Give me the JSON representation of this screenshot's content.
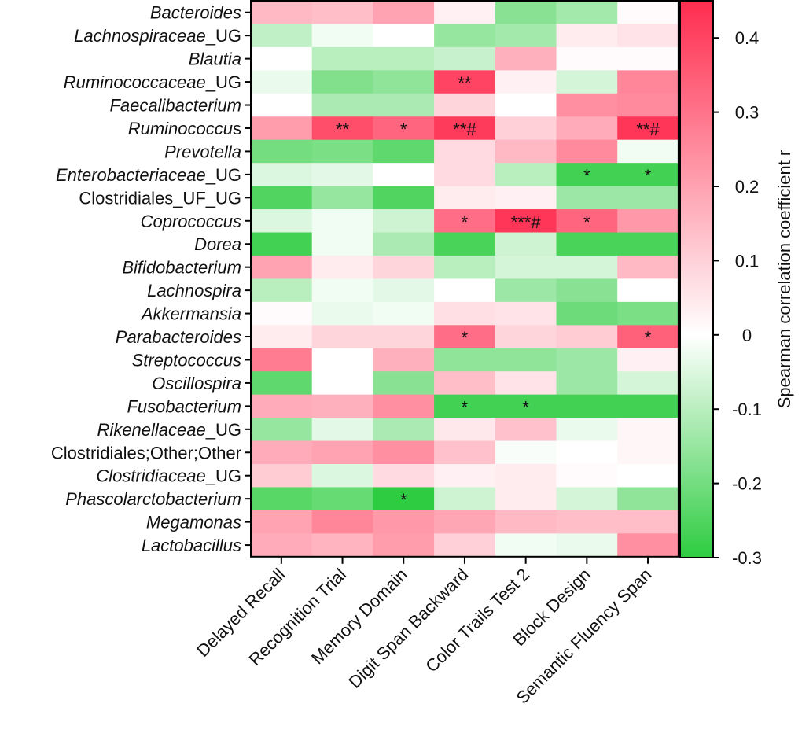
{
  "chart_data": {
    "type": "heatmap",
    "title": "",
    "rows": [
      {
        "name": "Bacteroides",
        "italic": true
      },
      {
        "name": "Lachnospiraceae_UG",
        "italic": true,
        "prefix": "Lachnospiraceae",
        "suffix": "_UG"
      },
      {
        "name": "Blautia",
        "italic": true
      },
      {
        "name": "Ruminococcaceae_UG",
        "italic": true,
        "prefix": "Ruminococcaceae",
        "suffix": "_UG"
      },
      {
        "name": "Faecalibacterium",
        "italic": true
      },
      {
        "name": "Ruminococcus",
        "italic": true,
        "prefix": "Ruminococcu",
        "suffix": "s"
      },
      {
        "name": "Prevotella",
        "italic": true
      },
      {
        "name": "Enterobacteriaceae_UG",
        "italic": true,
        "prefix": "Enterobacteriaceae",
        "suffix": "_UG"
      },
      {
        "name": "Clostridiales_UF_UG",
        "italic": false
      },
      {
        "name": "Coprococcus",
        "italic": true
      },
      {
        "name": "Dorea",
        "italic": true
      },
      {
        "name": "Bifidobacterium",
        "italic": true
      },
      {
        "name": "Lachnospira",
        "italic": true
      },
      {
        "name": "Akkermansia",
        "italic": true
      },
      {
        "name": "Parabacteroides",
        "italic": true
      },
      {
        "name": "Streptococcus",
        "italic": true
      },
      {
        "name": "Oscillospira",
        "italic": true
      },
      {
        "name": "Fusobacterium",
        "italic": true
      },
      {
        "name": "Rikenellaceae_UG",
        "italic": true,
        "prefix": "Rikenellaceae",
        "suffix": "_UG"
      },
      {
        "name": "Clostridiales;Other;Other",
        "italic": false
      },
      {
        "name": "Clostridiaceae_UG",
        "italic": true,
        "prefix": "Clostridiaceae",
        "suffix": "_UG"
      },
      {
        "name": "Phascolarctobacterium",
        "italic": true
      },
      {
        "name": "Megamonas",
        "italic": true
      },
      {
        "name": "Lactobacillus",
        "italic": true
      }
    ],
    "columns": [
      "Delayed Recall",
      "Recognition Trial",
      "Memory Domain",
      "Digit Span Backward",
      "Color Trails Test 2",
      "Block Design",
      "Semantic Fluency Span"
    ],
    "values": [
      [
        0.15,
        0.14,
        0.2,
        0.03,
        -0.17,
        -0.13,
        0.01
      ],
      [
        -0.09,
        -0.02,
        0.0,
        -0.15,
        -0.13,
        0.04,
        0.06
      ],
      [
        0.0,
        -0.1,
        -0.1,
        -0.08,
        0.17,
        0.01,
        0.01
      ],
      [
        -0.03,
        -0.18,
        -0.16,
        0.4,
        0.03,
        -0.06,
        0.26
      ],
      [
        0.0,
        -0.12,
        -0.12,
        0.09,
        0.0,
        0.24,
        0.25
      ],
      [
        0.21,
        0.38,
        0.33,
        0.42,
        0.1,
        0.18,
        0.43
      ],
      [
        -0.2,
        -0.19,
        -0.23,
        0.08,
        0.15,
        0.25,
        -0.02
      ],
      [
        -0.05,
        -0.04,
        0.0,
        0.08,
        -0.1,
        -0.27,
        -0.27
      ],
      [
        -0.25,
        -0.15,
        -0.25,
        0.04,
        0.03,
        -0.14,
        -0.14
      ],
      [
        -0.05,
        -0.02,
        -0.07,
        0.31,
        0.43,
        0.33,
        0.22
      ],
      [
        -0.27,
        -0.02,
        -0.12,
        -0.26,
        -0.07,
        -0.26,
        -0.26
      ],
      [
        0.2,
        0.04,
        0.09,
        -0.1,
        -0.06,
        -0.06,
        0.15
      ],
      [
        -0.1,
        -0.02,
        -0.04,
        0.0,
        -0.14,
        -0.17,
        0.0
      ],
      [
        0.01,
        -0.03,
        -0.02,
        0.07,
        0.06,
        -0.21,
        -0.19
      ],
      [
        0.04,
        0.09,
        0.09,
        0.31,
        0.09,
        0.11,
        0.34
      ],
      [
        0.28,
        0.0,
        0.17,
        -0.16,
        -0.16,
        -0.14,
        0.03
      ],
      [
        -0.23,
        0.0,
        -0.17,
        0.14,
        0.06,
        -0.14,
        -0.06
      ],
      [
        0.18,
        0.17,
        0.24,
        -0.27,
        -0.27,
        -0.27,
        -0.27
      ],
      [
        -0.15,
        -0.04,
        -0.12,
        0.05,
        0.13,
        -0.03,
        0.02
      ],
      [
        0.18,
        0.2,
        0.24,
        0.13,
        -0.01,
        0.0,
        0.02
      ],
      [
        0.11,
        -0.05,
        0.08,
        0.03,
        0.04,
        0.01,
        0.0
      ],
      [
        -0.24,
        -0.22,
        -0.3,
        -0.07,
        0.04,
        -0.06,
        -0.16
      ],
      [
        0.2,
        0.26,
        0.22,
        0.19,
        0.15,
        0.14,
        0.14
      ],
      [
        0.18,
        0.16,
        0.21,
        0.1,
        -0.02,
        -0.03,
        0.24
      ]
    ],
    "annotations": [
      {
        "row": 3,
        "col": 3,
        "text": "**"
      },
      {
        "row": 5,
        "col": 1,
        "text": "**"
      },
      {
        "row": 5,
        "col": 2,
        "text": "*"
      },
      {
        "row": 5,
        "col": 3,
        "text": "**#"
      },
      {
        "row": 5,
        "col": 6,
        "text": "**#"
      },
      {
        "row": 7,
        "col": 5,
        "text": "*"
      },
      {
        "row": 7,
        "col": 6,
        "text": "*"
      },
      {
        "row": 9,
        "col": 3,
        "text": "*"
      },
      {
        "row": 9,
        "col": 4,
        "text": "***#"
      },
      {
        "row": 9,
        "col": 5,
        "text": "*"
      },
      {
        "row": 14,
        "col": 3,
        "text": "*"
      },
      {
        "row": 14,
        "col": 6,
        "text": "*"
      },
      {
        "row": 17,
        "col": 3,
        "text": "*"
      },
      {
        "row": 17,
        "col": 4,
        "text": "*"
      },
      {
        "row": 21,
        "col": 2,
        "text": "*"
      }
    ],
    "colorbar": {
      "label": "Spearman correlation coefficient r",
      "vmin": -0.3,
      "vmax": 0.45,
      "ticks": [
        -0.3,
        -0.2,
        -0.1,
        0,
        0.1,
        0.2,
        0.3,
        0.4
      ],
      "tick_labels": [
        "-0.3",
        "-0.2",
        "-0.1",
        "0",
        "0.1",
        "0.2",
        "0.3",
        "0.4"
      ],
      "low_color": "#2ecc40",
      "mid_color": "#ffffff",
      "high_color": "#ff2d4f"
    }
  }
}
